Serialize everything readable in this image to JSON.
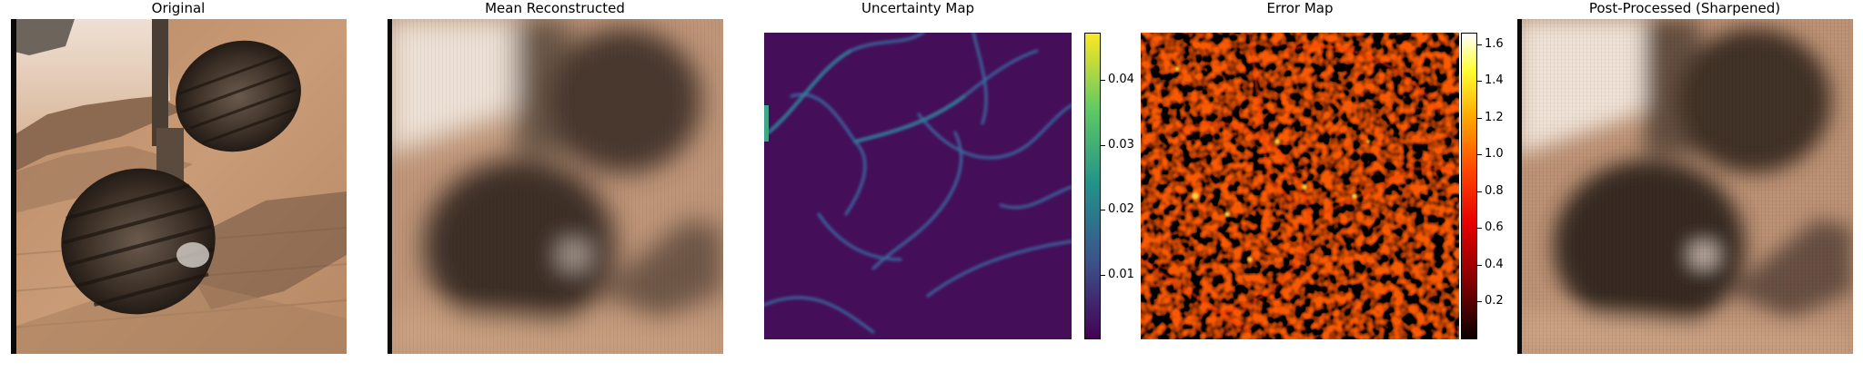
{
  "panels": [
    {
      "id": "original",
      "title": "Original"
    },
    {
      "id": "mean",
      "title": "Mean Reconstructed"
    },
    {
      "id": "uncertainty",
      "title": "Uncertainty Map"
    },
    {
      "id": "error",
      "title": "Error Map"
    },
    {
      "id": "post",
      "title": "Post-Processed (Sharpened)"
    }
  ],
  "uncertainty_colorbar": {
    "colormap": "viridis",
    "ticks": [
      "0.04",
      "0.03",
      "0.02",
      "0.01"
    ],
    "tick_values": [
      0.04,
      0.03,
      0.02,
      0.01
    ],
    "range": [
      0.0,
      0.047
    ]
  },
  "error_colorbar": {
    "colormap": "hot",
    "ticks": [
      "1.6",
      "1.4",
      "1.2",
      "1.0",
      "0.8",
      "0.6",
      "0.4",
      "0.2"
    ],
    "tick_values": [
      1.6,
      1.4,
      1.2,
      1.0,
      0.8,
      0.6,
      0.4,
      0.2
    ],
    "range": [
      0.0,
      1.68
    ]
  }
}
